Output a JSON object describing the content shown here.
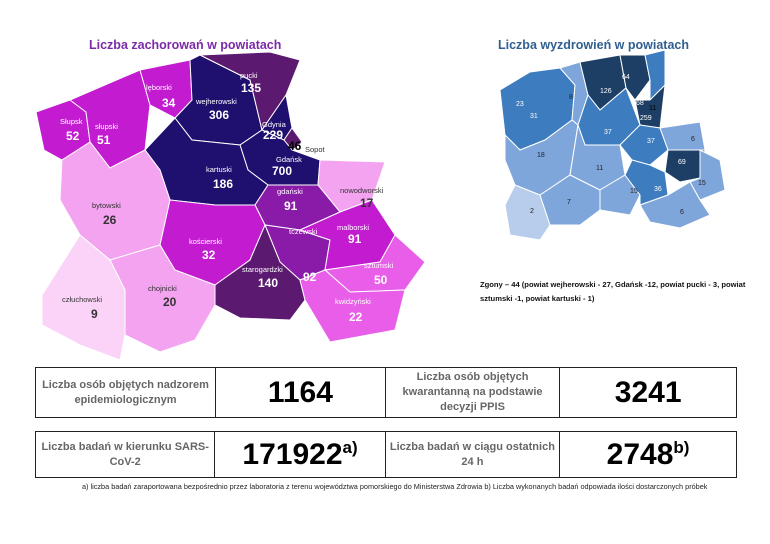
{
  "infection_map": {
    "title": "Liczba zachorowań w powiatach",
    "districts": [
      {
        "name": "pucki",
        "value": "135"
      },
      {
        "name": "lęborski",
        "value": "34"
      },
      {
        "name": "wejherowski",
        "value": "306"
      },
      {
        "name": "Słupsk",
        "value": "52"
      },
      {
        "name": "słupski",
        "value": "51"
      },
      {
        "name": "Gdynia",
        "value": "229"
      },
      {
        "name": "Sopot",
        "value": "46"
      },
      {
        "name": "Gdańsk",
        "value": "700"
      },
      {
        "name": "kartuski",
        "value": "186"
      },
      {
        "name": "bytowski",
        "value": "26"
      },
      {
        "name": "nowodworski",
        "value": "17"
      },
      {
        "name": "gdański",
        "value": "91"
      },
      {
        "name": "kościerski",
        "value": "32"
      },
      {
        "name": "tczewski",
        "value": "92"
      },
      {
        "name": "malborski",
        "value": "91"
      },
      {
        "name": "starogardzki",
        "value": "140"
      },
      {
        "name": "sztumski",
        "value": "50"
      },
      {
        "name": "chojnicki",
        "value": "20"
      },
      {
        "name": "człuchowski",
        "value": "9"
      },
      {
        "name": "kwidzyński",
        "value": "22"
      }
    ]
  },
  "recovery_map": {
    "title": "Liczba wyzdrowień w powiatach",
    "values": [
      "64",
      "126",
      "68",
      "11",
      "259",
      "23",
      "31",
      "8",
      "37",
      "37",
      "6",
      "18",
      "11",
      "69",
      "15",
      "15",
      "36",
      "2",
      "7",
      "6"
    ]
  },
  "deaths_note": "Zgony – 44 (powiat wejherowski - 27, Gdańsk -12, powiat pucki - 3, powiat sztumski -1, powiat kartuski - 1)",
  "stats": {
    "supervised_label": "Liczba osób objętych nadzorem epidemiologicznym",
    "supervised_value": "1164",
    "quarantine_label": "Liczba osób objętych kwarantanną na podstawie decyzji PPIS",
    "quarantine_value": "3241",
    "tests_label": "Liczba badań w kierunku SARS-CoV-2",
    "tests_value": "171922",
    "tests_mark": "a)",
    "tests24_label": "Liczba badań w ciągu ostatnich 24 h",
    "tests24_value": "2748",
    "tests24_mark": "b)"
  },
  "footnote": "a) liczba badań zaraportowana bezpośrednio przez laboratoria z terenu województwa pomorskiego do Ministerstwa Zdrowia b) Liczba wykonanych badań odpowiada ilości dostarczonych próbek",
  "colors": {
    "very_high": "#1f0f6e",
    "high": "#5b1a70",
    "mid_high": "#8a1aa8",
    "mid": "#c21bd0",
    "low": "#e85ee8",
    "very_low": "#f3a3f0",
    "min": "#fbd3f8",
    "rec_dark": "#1d3f66",
    "rec_mid": "#3e7cc0",
    "rec_light": "#7fa6db",
    "rec_pale": "#b7cdeb"
  }
}
